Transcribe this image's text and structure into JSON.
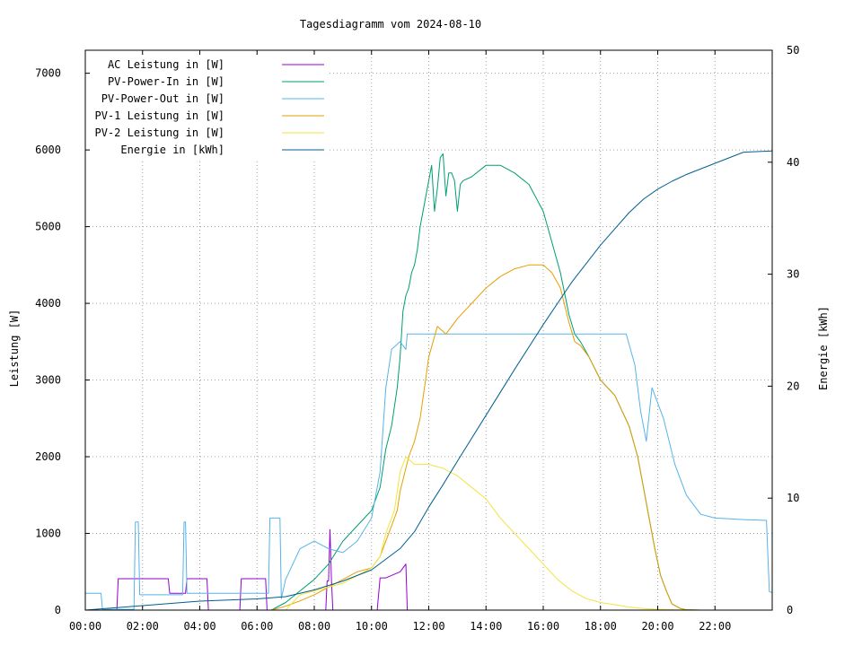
{
  "chart_data": {
    "type": "line",
    "title": "Tagesdiagramm vom 2024-08-10",
    "xlabel": "",
    "ylabel": "Leistung [W]",
    "y2label": "Energie in [kWh]",
    "ylabel2_display": "Energie [kWh]",
    "xlim": [
      0,
      24
    ],
    "ylim": [
      0,
      7300
    ],
    "y2lim": [
      0,
      50
    ],
    "x_ticks": [
      0,
      2,
      4,
      6,
      8,
      10,
      12,
      14,
      16,
      18,
      20,
      22
    ],
    "x_tick_labels": [
      "00:00",
      "02:00",
      "04:00",
      "06:00",
      "08:00",
      "10:00",
      "12:00",
      "14:00",
      "16:00",
      "18:00",
      "20:00",
      "22:00"
    ],
    "y_ticks": [
      0,
      1000,
      2000,
      3000,
      4000,
      5000,
      6000,
      7000
    ],
    "y_tick_labels": [
      "0",
      "1000",
      "2000",
      "3000",
      "4000",
      "5000",
      "6000",
      "7000"
    ],
    "y2_ticks": [
      0,
      10,
      20,
      30,
      40,
      50
    ],
    "y2_tick_labels": [
      "0",
      "10",
      "20",
      "30",
      "40",
      "50"
    ],
    "grid": true,
    "legend_position": "top-left",
    "series": [
      {
        "name": "AC Leistung in [W]",
        "axis": "y1",
        "color": "#9400d3",
        "x": [
          0,
          0.6,
          0.65,
          1.1,
          1.15,
          2.9,
          2.95,
          3.5,
          3.55,
          4.25,
          4.3,
          5.4,
          5.45,
          6.3,
          6.35,
          7.0,
          7.5,
          8.0,
          8.4,
          8.45,
          8.5,
          8.55,
          8.6,
          8.65,
          9.3,
          9.5,
          10.2,
          10.3,
          10.5,
          11.0,
          11.2,
          11.25,
          13.0,
          14.0,
          16.0,
          18.0,
          18.95,
          19.0,
          24.0
        ],
        "y": [
          0,
          0,
          0,
          0,
          410,
          410,
          220,
          220,
          410,
          410,
          0,
          0,
          410,
          410,
          0,
          0,
          0,
          0,
          0,
          380,
          380,
          1050,
          400,
          0,
          0,
          0,
          0,
          420,
          420,
          500,
          600,
          0,
          0,
          0,
          0,
          0,
          0,
          0,
          0
        ]
      },
      {
        "name": "PV-Power-In in [W]",
        "axis": "y1",
        "color": "#009e73",
        "x": [
          6.5,
          7.0,
          7.5,
          8.0,
          8.5,
          9.0,
          9.5,
          10.0,
          10.3,
          10.5,
          10.7,
          10.9,
          11.0,
          11.1,
          11.2,
          11.3,
          11.4,
          11.5,
          11.6,
          11.7,
          11.8,
          11.9,
          12.0,
          12.1,
          12.2,
          12.3,
          12.4,
          12.5,
          12.6,
          12.7,
          12.8,
          12.9,
          13.0,
          13.1,
          13.2,
          13.5,
          14.0,
          14.5,
          15.0,
          15.5,
          16.0,
          16.3,
          16.6,
          16.9,
          17.1,
          17.3,
          17.6,
          18.0,
          18.5,
          19.0,
          19.3,
          19.5,
          19.7,
          19.9,
          20.1,
          20.3,
          20.5,
          20.8,
          21.0,
          21.5,
          22.0,
          24.0
        ],
        "y": [
          0,
          100,
          250,
          400,
          600,
          900,
          1100,
          1300,
          1600,
          2100,
          2400,
          2900,
          3300,
          3900,
          4100,
          4200,
          4400,
          4500,
          4700,
          5000,
          5200,
          5400,
          5600,
          5800,
          5200,
          5500,
          5900,
          5950,
          5400,
          5700,
          5700,
          5600,
          5200,
          5550,
          5600,
          5650,
          5800,
          5800,
          5700,
          5550,
          5200,
          4800,
          4400,
          3850,
          3600,
          3500,
          3300,
          3000,
          2800,
          2400,
          2000,
          1600,
          1200,
          800,
          450,
          250,
          80,
          20,
          5,
          0,
          0,
          0
        ]
      },
      {
        "name": "PV-Power-Out in [W]",
        "axis": "y1",
        "color": "#56b4e9",
        "x": [
          0,
          0.55,
          0.6,
          1.7,
          1.75,
          1.85,
          1.9,
          3.4,
          3.45,
          3.5,
          3.55,
          6.4,
          6.45,
          6.8,
          6.85,
          7.0,
          7.5,
          8.0,
          8.5,
          9.0,
          9.5,
          10.0,
          10.3,
          10.5,
          10.7,
          11.0,
          11.2,
          11.25,
          12.0,
          13.0,
          14.0,
          15.0,
          16.0,
          17.0,
          18.0,
          18.9,
          19.2,
          19.4,
          19.6,
          19.8,
          20.2,
          20.6,
          21.0,
          21.5,
          22.0,
          23.0,
          23.8,
          23.9,
          24.0
        ],
        "y": [
          220,
          220,
          10,
          10,
          1150,
          1150,
          200,
          200,
          1150,
          1150,
          220,
          220,
          1200,
          1200,
          150,
          400,
          800,
          900,
          800,
          750,
          900,
          1200,
          1800,
          2900,
          3400,
          3500,
          3400,
          3600,
          3600,
          3600,
          3600,
          3600,
          3600,
          3600,
          3600,
          3600,
          3200,
          2600,
          2200,
          2900,
          2500,
          1900,
          1500,
          1250,
          1200,
          1180,
          1170,
          240,
          230
        ]
      },
      {
        "name": "PV-1 Leistung in [W]",
        "axis": "y1",
        "color": "#e69f00",
        "x": [
          6.5,
          7.0,
          7.5,
          8.0,
          8.5,
          9.0,
          9.5,
          10.0,
          10.3,
          10.5,
          10.7,
          10.9,
          11.0,
          11.1,
          11.3,
          11.5,
          11.7,
          12.0,
          12.3,
          12.6,
          13.0,
          13.5,
          14.0,
          14.5,
          15.0,
          15.5,
          16.0,
          16.3,
          16.6,
          16.9,
          17.1,
          17.3,
          17.6,
          18.0,
          18.5,
          19.0,
          19.3,
          19.5,
          19.7,
          19.9,
          20.1,
          20.3,
          20.5,
          20.8,
          21.0,
          21.5,
          22.0,
          24.0
        ],
        "y": [
          0,
          50,
          120,
          200,
          300,
          400,
          500,
          550,
          700,
          900,
          1100,
          1300,
          1550,
          1700,
          2000,
          2200,
          2500,
          3300,
          3700,
          3600,
          3800,
          4000,
          4200,
          4350,
          4450,
          4500,
          4500,
          4400,
          4200,
          3750,
          3500,
          3450,
          3300,
          3000,
          2800,
          2400,
          2000,
          1600,
          1200,
          800,
          450,
          250,
          80,
          20,
          5,
          0,
          0,
          0
        ]
      },
      {
        "name": "PV-2 Leistung in [W]",
        "axis": "y1",
        "color": "#f0e442",
        "x": [
          7.0,
          7.5,
          8.0,
          8.5,
          9.0,
          9.5,
          10.0,
          10.3,
          10.5,
          10.8,
          11.0,
          11.2,
          11.5,
          12.0,
          12.5,
          13.0,
          13.5,
          14.0,
          14.5,
          15.0,
          15.5,
          16.0,
          16.5,
          17.0,
          17.5,
          18.0,
          18.5,
          19.0,
          19.5,
          20.0,
          20.5,
          21.0,
          22.0,
          24.0
        ],
        "y": [
          0,
          200,
          250,
          300,
          350,
          450,
          550,
          700,
          1000,
          1300,
          1800,
          2000,
          1900,
          1900,
          1850,
          1750,
          1600,
          1450,
          1200,
          1000,
          800,
          600,
          400,
          250,
          150,
          100,
          70,
          40,
          20,
          10,
          5,
          0,
          0,
          0
        ]
      },
      {
        "name": "Energie in [kWh]",
        "axis": "y2",
        "color": "#005f8f",
        "x": [
          0,
          1.0,
          2.0,
          3.0,
          4.0,
          5.0,
          6.0,
          7.0,
          8.0,
          9.0,
          10.0,
          11.0,
          11.5,
          12.0,
          12.5,
          13.0,
          14.0,
          15.0,
          16.0,
          17.0,
          18.0,
          19.0,
          19.5,
          20.0,
          20.5,
          21.0,
          22.0,
          23.0,
          24.0
        ],
        "y": [
          0,
          0.2,
          0.4,
          0.6,
          0.8,
          0.9,
          1.0,
          1.2,
          1.8,
          2.6,
          3.6,
          5.5,
          7.0,
          9.2,
          11.2,
          13.3,
          17.4,
          21.5,
          25.5,
          29.3,
          32.6,
          35.5,
          36.7,
          37.6,
          38.3,
          38.9,
          39.9,
          40.9,
          41.0
        ]
      }
    ]
  }
}
